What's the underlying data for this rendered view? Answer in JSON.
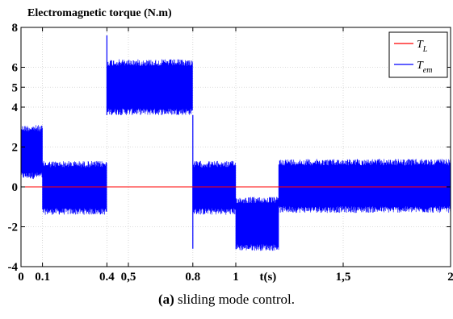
{
  "chart_data": {
    "type": "line",
    "title": "Electromagnetic torque (N.m)",
    "xlabel": "t(s)",
    "ylabel": "",
    "xlim": [
      0,
      2
    ],
    "ylim": [
      -4,
      8
    ],
    "x_ticks": [
      {
        "value": 0,
        "label": "0"
      },
      {
        "value": 0.1,
        "label": "0.1"
      },
      {
        "value": 0.4,
        "label": "0.4"
      },
      {
        "value": 0.5,
        "label": "0,5"
      },
      {
        "value": 0.8,
        "label": "0.8"
      },
      {
        "value": 1,
        "label": "1"
      },
      {
        "value": 1.5,
        "label": "1,5"
      },
      {
        "value": 2,
        "label": "2"
      }
    ],
    "xlabel_position": 1.15,
    "y_ticks": [
      {
        "value": -4,
        "label": "-4"
      },
      {
        "value": -2,
        "label": "-2"
      },
      {
        "value": 0,
        "label": "0"
      },
      {
        "value": 2,
        "label": "2"
      },
      {
        "value": 4,
        "label": "4"
      },
      {
        "value": 5,
        "label": "5"
      },
      {
        "value": 6,
        "label": "6"
      },
      {
        "value": 8,
        "label": "8"
      }
    ],
    "grid": true,
    "legend_position": "top-right",
    "series": [
      {
        "name": "T",
        "name_subscript": "L",
        "color": "#ff0000",
        "x": [
          0,
          0.1,
          0.1,
          0.4,
          0.4,
          0.8,
          0.8,
          1.2,
          1.2,
          2
        ],
        "y": [
          0,
          0,
          0,
          0,
          0,
          0,
          0,
          0,
          0,
          0
        ]
      },
      {
        "name": "T",
        "name_subscript": "em",
        "color": "#0000ff",
        "segments": [
          {
            "x0": 0,
            "x1": 0.1,
            "low": 0.4,
            "high": 3.1
          },
          {
            "x0": 0.1,
            "x1": 0.4,
            "low": -1.4,
            "high": 1.3
          },
          {
            "x0": 0.4,
            "x1": 0.8,
            "low": 3.6,
            "high": 6.4
          },
          {
            "x0": 0.8,
            "x1": 1.0,
            "low": -1.4,
            "high": 1.3
          },
          {
            "x0": 1.0,
            "x1": 1.2,
            "low": -3.2,
            "high": -0.5
          },
          {
            "x0": 1.2,
            "x1": 2.0,
            "low": -1.3,
            "high": 1.4
          }
        ],
        "spikes": [
          {
            "x": 0.4,
            "low": 3.6,
            "high": 7.6
          },
          {
            "x": 0.8,
            "low": -3.1,
            "high": 3.6
          }
        ]
      }
    ]
  },
  "caption": {
    "label": "(a)",
    "text": " sliding mode control."
  }
}
